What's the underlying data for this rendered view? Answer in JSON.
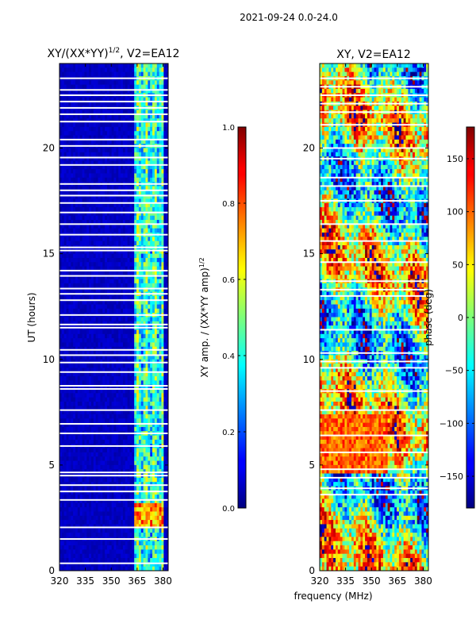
{
  "figure": {
    "suptitle": "2021-09-24 0.0-24.0"
  },
  "chart_data": [
    {
      "type": "heatmap",
      "title": "XY/(XX*YY)",
      "title_sup": "1/2",
      "title_rest": ", V2=EA12",
      "xlabel": "",
      "ylabel": "UT (hours)",
      "xlim": [
        320,
        383
      ],
      "ylim": [
        0,
        24
      ],
      "xticks": [
        320,
        335,
        350,
        365,
        380
      ],
      "yticks": [
        0,
        5,
        10,
        15,
        20
      ],
      "xtick_labels": [
        "320",
        "335",
        "350",
        "365",
        "380"
      ],
      "ytick_labels": [
        "0",
        "5",
        "10",
        "15",
        "20"
      ],
      "colorbar": {
        "label": "XY amp. / (XX*YY amp)",
        "label_sup": "1/2",
        "range": [
          0.0,
          1.0
        ],
        "ticks": [
          0.0,
          0.2,
          0.4,
          0.6,
          0.8,
          1.0
        ],
        "tick_labels": [
          "0.0",
          "0.2",
          "0.4",
          "0.6",
          "0.8",
          "1.0"
        ]
      },
      "description_values": {
        "background": 0.05,
        "band_start_mhz": 363,
        "band_end_mhz": 381,
        "peak_hours": [
          2.0,
          3.2
        ]
      },
      "flagged_rows_ut": [
        0.35,
        1.5,
        2.05,
        3.35,
        3.75,
        4.05,
        4.5,
        4.65,
        5.9,
        6.5,
        6.95,
        7.6,
        8.6,
        8.75,
        9.4,
        9.85,
        10.2,
        10.45,
        11.5,
        11.65,
        12.1,
        12.8,
        13.1,
        13.35,
        13.95,
        14.2,
        15.15,
        15.3,
        15.9,
        16.4,
        16.95,
        17.4,
        17.75,
        18.0,
        18.3,
        19.2,
        19.55,
        20.1,
        20.4,
        21.25,
        21.6,
        21.9,
        22.2,
        22.5,
        22.75,
        23.3
      ]
    },
    {
      "type": "heatmap",
      "title": "XY, V2=EA12",
      "xlabel": "frequency (MHz)",
      "ylabel": "",
      "xlim": [
        320,
        383
      ],
      "ylim": [
        0,
        24
      ],
      "xticks": [
        320,
        335,
        350,
        365,
        380
      ],
      "yticks": [
        0,
        5,
        10,
        15,
        20
      ],
      "xtick_labels": [
        "320",
        "335",
        "350",
        "365",
        "380"
      ],
      "ytick_labels": [
        "0",
        "5",
        "10",
        "15",
        "20"
      ],
      "colorbar": {
        "label": "phase (deg)",
        "range": [
          -180,
          180
        ],
        "ticks": [
          -150,
          -100,
          -50,
          0,
          50,
          100,
          150
        ],
        "tick_labels": [
          "−150",
          "−100",
          "−50",
          "0",
          "50",
          "100",
          "150"
        ]
      },
      "flagged_rows_ut": [
        3.6,
        3.9,
        4.4,
        4.8,
        5.6,
        6.4,
        7.6,
        8.5,
        9.6,
        9.9,
        10.3,
        11.4,
        13.0,
        13.3,
        13.7,
        14.6,
        15.6,
        16.4,
        17.5,
        18.2,
        18.6,
        19.5,
        20.0,
        21.1,
        21.7,
        22.1,
        22.5,
        22.9,
        23.3
      ]
    }
  ]
}
